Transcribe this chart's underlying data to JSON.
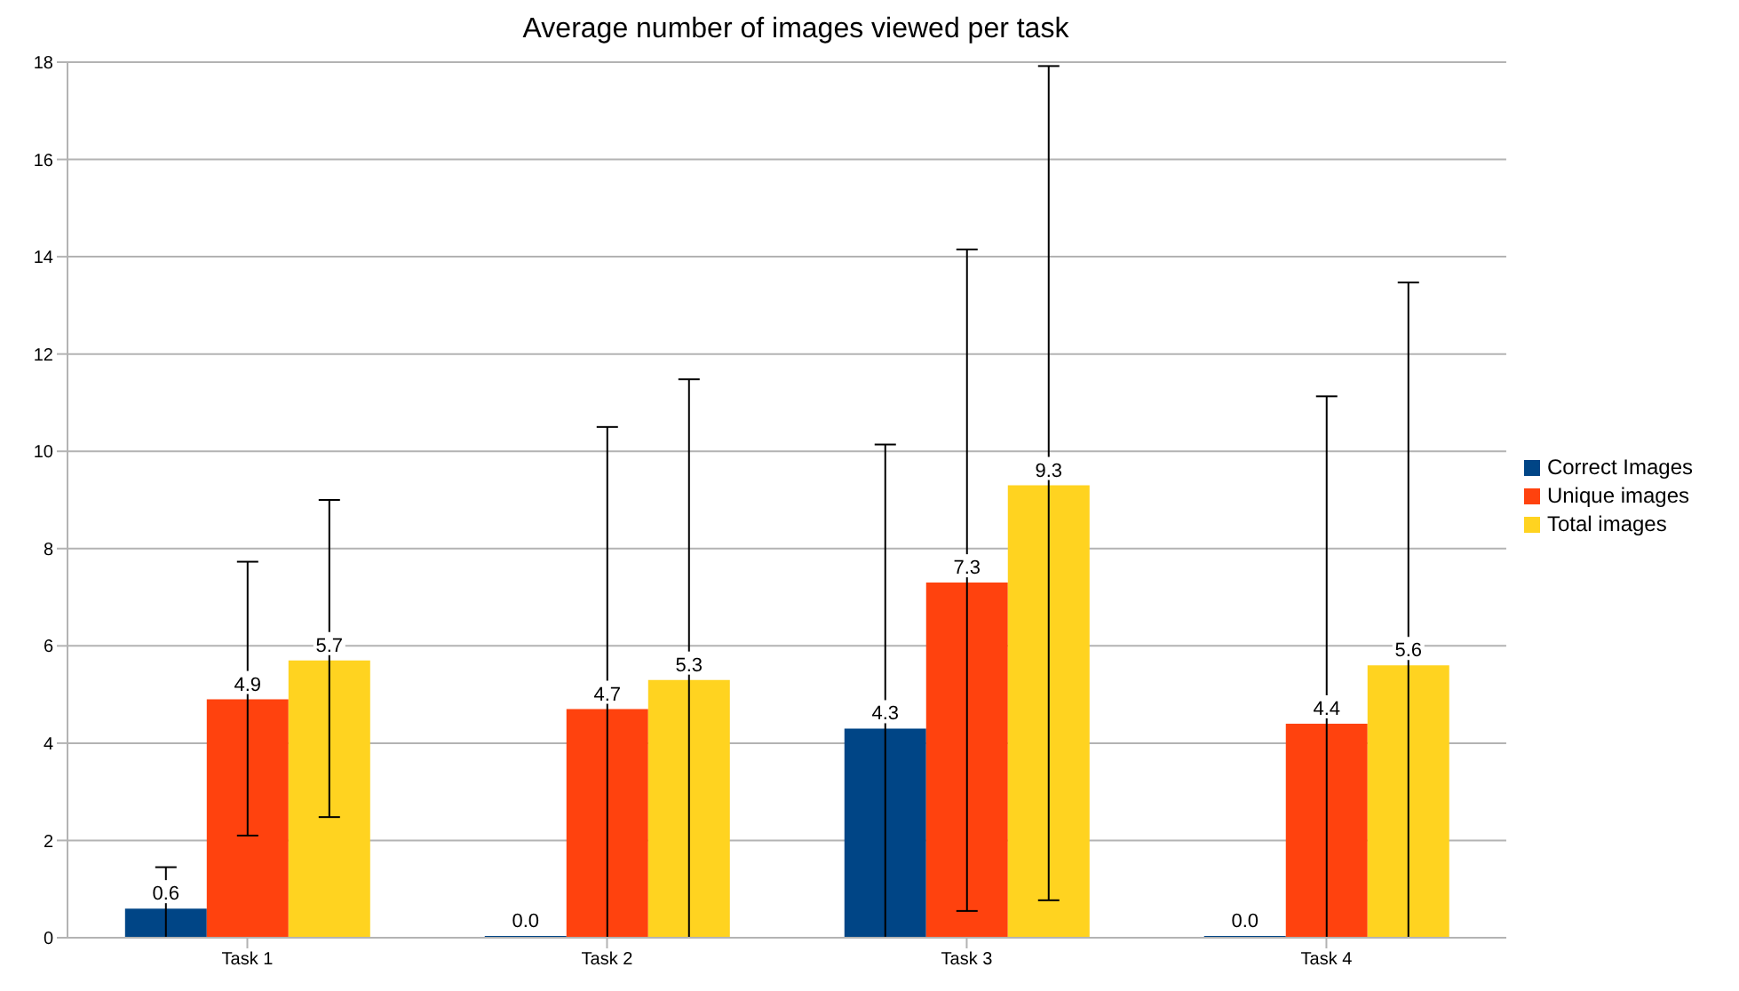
{
  "chart_data": {
    "type": "bar",
    "title": "Average number of images viewed per task",
    "categories": [
      "Task 1",
      "Task 2",
      "Task 3",
      "Task 4"
    ],
    "series": [
      {
        "name": "Correct Images",
        "color": "#004586",
        "values": [
          0.6,
          0,
          4.3,
          0
        ],
        "value_labels": [
          "0.6",
          "0.0",
          "4.3",
          "0.0"
        ],
        "errors": [
          [
            0,
            1.45
          ],
          null,
          [
            0,
            10.14
          ],
          null
        ]
      },
      {
        "name": "Unique images",
        "color": "#ff420e",
        "values": [
          4.9,
          4.7,
          7.3,
          4.4
        ],
        "value_labels": [
          "4.9",
          "4.7",
          "7.3",
          "4.4"
        ],
        "errors": [
          [
            2.1,
            7.73
          ],
          [
            0,
            10.5
          ],
          [
            0.55,
            14.15
          ],
          [
            0,
            11.13
          ]
        ]
      },
      {
        "name": "Total images",
        "color": "#ffd320",
        "values": [
          5.7,
          5.3,
          9.3,
          5.6
        ],
        "value_labels": [
          "5.7",
          "5.3",
          "9.3",
          "5.6"
        ],
        "errors": [
          [
            2.48,
            9.0
          ],
          [
            0,
            11.48
          ],
          [
            0.77,
            17.92
          ],
          [
            0,
            13.47
          ]
        ]
      }
    ],
    "ylim": [
      0,
      18
    ],
    "yticks": [
      0,
      2,
      4,
      6,
      8,
      10,
      12,
      14,
      16,
      18
    ],
    "grid": "y",
    "legend": "right"
  }
}
